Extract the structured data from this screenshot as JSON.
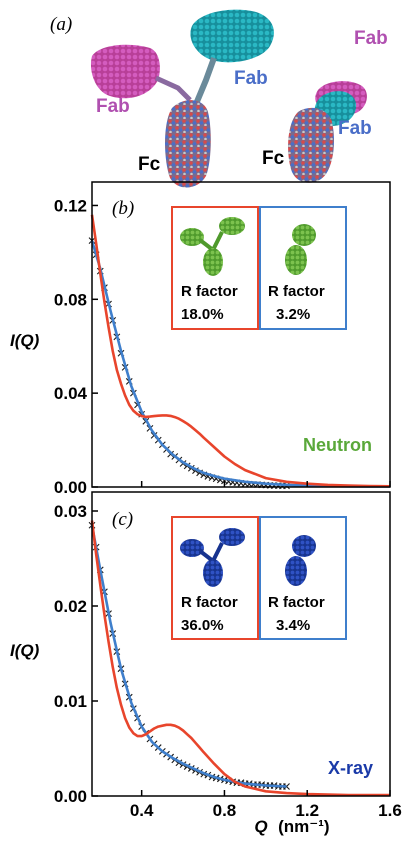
{
  "structure_panel": {
    "letter": "(a)",
    "labels": {
      "fab_left": "Fab",
      "fab_right": "Fab",
      "fc_left": "Fc",
      "fab_top_right": "Fab",
      "fab_bottom_right": "Fab",
      "fc_right": "Fc"
    },
    "colors": {
      "magenta": "#c04aa8",
      "cyan": "#1fa8b4",
      "fab_text_violet": "#b050b0",
      "fab_text_blue": "#4a6ec8"
    }
  },
  "colors": {
    "model_poor": "#e8452c",
    "model_good": "#3f7fcc",
    "experimental": "#1a1a1a",
    "neutron_green": "#5aa83a",
    "xray_blue": "#1a3aa8"
  },
  "chart_data": [
    {
      "type": "line",
      "panel": "(b)",
      "ylabel": "I(Q)",
      "xlim": [
        0.16,
        1.6
      ],
      "ylim": [
        0,
        0.13
      ],
      "xticks": [
        "0.4",
        "0.8",
        "1.2",
        "1.6"
      ],
      "yticks": [
        "0.00",
        "0.04",
        "0.08",
        "0.12"
      ],
      "ytick_values": [
        0,
        0.04,
        0.08,
        0.12
      ],
      "legend": "Neutron",
      "insets": [
        {
          "label": "R factor",
          "value": "18.0%",
          "frame": "model_poor"
        },
        {
          "label": "R factor",
          "value": "3.2%",
          "frame": "model_good"
        }
      ],
      "series": [
        {
          "role": "experimental",
          "x": [
            0.16,
            0.18,
            0.2,
            0.22,
            0.24,
            0.26,
            0.28,
            0.3,
            0.32,
            0.34,
            0.36,
            0.38,
            0.4,
            0.42,
            0.44,
            0.46,
            0.48,
            0.5,
            0.52,
            0.54,
            0.56,
            0.58,
            0.6,
            0.62,
            0.64,
            0.66,
            0.68,
            0.7,
            0.72,
            0.74,
            0.76,
            0.78,
            0.8,
            0.82,
            0.84,
            0.86,
            0.88,
            0.9,
            0.92,
            0.94,
            0.96,
            0.98,
            1.0,
            1.02,
            1.04,
            1.06,
            1.08,
            1.1
          ],
          "y": [
            0.105,
            0.099,
            0.092,
            0.085,
            0.078,
            0.071,
            0.064,
            0.057,
            0.051,
            0.045,
            0.04,
            0.035,
            0.031,
            0.028,
            0.025,
            0.022,
            0.02,
            0.018,
            0.016,
            0.014,
            0.013,
            0.0115,
            0.01,
            0.009,
            0.008,
            0.007,
            0.006,
            0.0052,
            0.0045,
            0.004,
            0.0035,
            0.003,
            0.0026,
            0.0023,
            0.002,
            0.0018,
            0.0016,
            0.0014,
            0.0012,
            0.0011,
            0.001,
            0.0009,
            0.0008,
            0.0007,
            0.0006,
            0.0006,
            0.0005,
            0.0005
          ]
        },
        {
          "role": "model_good",
          "x": [
            0.16,
            0.2,
            0.25,
            0.3,
            0.35,
            0.4,
            0.45,
            0.5,
            0.55,
            0.6,
            0.65,
            0.7,
            0.75,
            0.8,
            0.9,
            1.0,
            1.1,
            1.2,
            1.3,
            1.4,
            1.5,
            1.6
          ],
          "y": [
            0.105,
            0.093,
            0.075,
            0.058,
            0.043,
            0.032,
            0.024,
            0.018,
            0.0138,
            0.0105,
            0.008,
            0.006,
            0.0047,
            0.0036,
            0.0022,
            0.0014,
            0.0009,
            0.0006,
            0.0004,
            0.0003,
            0.0002,
            0.0002
          ]
        },
        {
          "role": "model_poor",
          "x": [
            0.16,
            0.18,
            0.2,
            0.22,
            0.24,
            0.26,
            0.28,
            0.3,
            0.32,
            0.34,
            0.36,
            0.38,
            0.4,
            0.42,
            0.44,
            0.46,
            0.48,
            0.5,
            0.52,
            0.54,
            0.56,
            0.58,
            0.6,
            0.62,
            0.64,
            0.66,
            0.68,
            0.7,
            0.75,
            0.8,
            0.85,
            0.9,
            1.0,
            1.1,
            1.2,
            1.3,
            1.4,
            1.5,
            1.6
          ],
          "y": [
            0.116,
            0.104,
            0.091,
            0.079,
            0.068,
            0.058,
            0.05,
            0.044,
            0.039,
            0.035,
            0.0325,
            0.031,
            0.0302,
            0.0299,
            0.03,
            0.0302,
            0.0304,
            0.0305,
            0.0305,
            0.0303,
            0.0298,
            0.0291,
            0.0281,
            0.027,
            0.0257,
            0.0242,
            0.0227,
            0.021,
            0.017,
            0.013,
            0.0098,
            0.0072,
            0.0038,
            0.0022,
            0.0014,
            0.0009,
            0.0006,
            0.0004,
            0.0003
          ]
        }
      ]
    },
    {
      "type": "line",
      "panel": "(c)",
      "xlabel": "Q",
      "xlabel_unit": "(nm⁻¹)",
      "ylabel": "I(Q)",
      "xlim": [
        0.16,
        1.6
      ],
      "ylim": [
        0,
        0.032
      ],
      "xticks": [
        "0.4",
        "0.8",
        "1.2",
        "1.6"
      ],
      "xtick_values": [
        0.4,
        0.8,
        1.2,
        1.6
      ],
      "yticks": [
        "0.00",
        "0.01",
        "0.02",
        "0.03"
      ],
      "ytick_values": [
        0,
        0.01,
        0.02,
        0.03
      ],
      "legend": "X-ray",
      "insets": [
        {
          "label": "R factor",
          "value": "36.0%",
          "frame": "model_poor"
        },
        {
          "label": "R factor",
          "value": "3.4%",
          "frame": "model_good"
        }
      ],
      "series": [
        {
          "role": "experimental",
          "x": [
            0.16,
            0.18,
            0.2,
            0.22,
            0.24,
            0.26,
            0.28,
            0.3,
            0.32,
            0.34,
            0.36,
            0.38,
            0.4,
            0.42,
            0.44,
            0.46,
            0.48,
            0.5,
            0.52,
            0.54,
            0.56,
            0.58,
            0.6,
            0.62,
            0.64,
            0.66,
            0.68,
            0.7,
            0.72,
            0.74,
            0.76,
            0.78,
            0.8,
            0.82,
            0.84,
            0.86,
            0.88,
            0.9,
            0.92,
            0.94,
            0.96,
            0.98,
            1.0,
            1.02,
            1.04,
            1.06,
            1.08,
            1.1
          ],
          "y": [
            0.0285,
            0.0262,
            0.0238,
            0.0215,
            0.0192,
            0.0171,
            0.0152,
            0.0134,
            0.0118,
            0.0104,
            0.0092,
            0.0082,
            0.0073,
            0.0066,
            0.006,
            0.0055,
            0.0051,
            0.0047,
            0.0044,
            0.0041,
            0.0038,
            0.0035,
            0.0033,
            0.0031,
            0.0029,
            0.0027,
            0.0025,
            0.0023,
            0.0022,
            0.002,
            0.0019,
            0.0018,
            0.0017,
            0.0016,
            0.0015,
            0.0014,
            0.0014,
            0.0013,
            0.0013,
            0.0012,
            0.0012,
            0.0012,
            0.0011,
            0.0011,
            0.0011,
            0.001,
            0.001,
            0.001
          ]
        },
        {
          "role": "model_good",
          "x": [
            0.16,
            0.2,
            0.25,
            0.3,
            0.35,
            0.4,
            0.45,
            0.5,
            0.55,
            0.6,
            0.65,
            0.7,
            0.75,
            0.8,
            0.9,
            1.0,
            1.1
          ],
          "y": [
            0.0285,
            0.0238,
            0.0182,
            0.0134,
            0.0098,
            0.0073,
            0.0057,
            0.0047,
            0.004,
            0.0034,
            0.0029,
            0.0024,
            0.002,
            0.0017,
            0.0013,
            0.0011,
            0.001
          ]
        },
        {
          "role": "model_poor",
          "x": [
            0.16,
            0.18,
            0.2,
            0.22,
            0.24,
            0.26,
            0.28,
            0.3,
            0.32,
            0.34,
            0.36,
            0.38,
            0.4,
            0.42,
            0.44,
            0.46,
            0.48,
            0.5,
            0.52,
            0.54,
            0.56,
            0.58,
            0.6,
            0.62,
            0.64,
            0.66,
            0.68,
            0.7,
            0.75,
            0.8,
            0.85,
            0.9,
            1.0,
            1.1,
            1.2,
            1.3,
            1.4,
            1.5,
            1.6
          ],
          "y": [
            0.029,
            0.0255,
            0.0222,
            0.0191,
            0.0162,
            0.0136,
            0.0114,
            0.0096,
            0.0082,
            0.0072,
            0.0066,
            0.0063,
            0.0063,
            0.0065,
            0.0068,
            0.0071,
            0.0073,
            0.0074,
            0.0075,
            0.0075,
            0.0074,
            0.0072,
            0.0069,
            0.0065,
            0.0061,
            0.0056,
            0.0051,
            0.0046,
            0.0034,
            0.0023,
            0.0015,
            0.001,
            0.0005,
            0.0003,
            0.0002,
            0.00015,
            0.0001,
            0.0001,
            0.0001
          ]
        }
      ]
    }
  ]
}
